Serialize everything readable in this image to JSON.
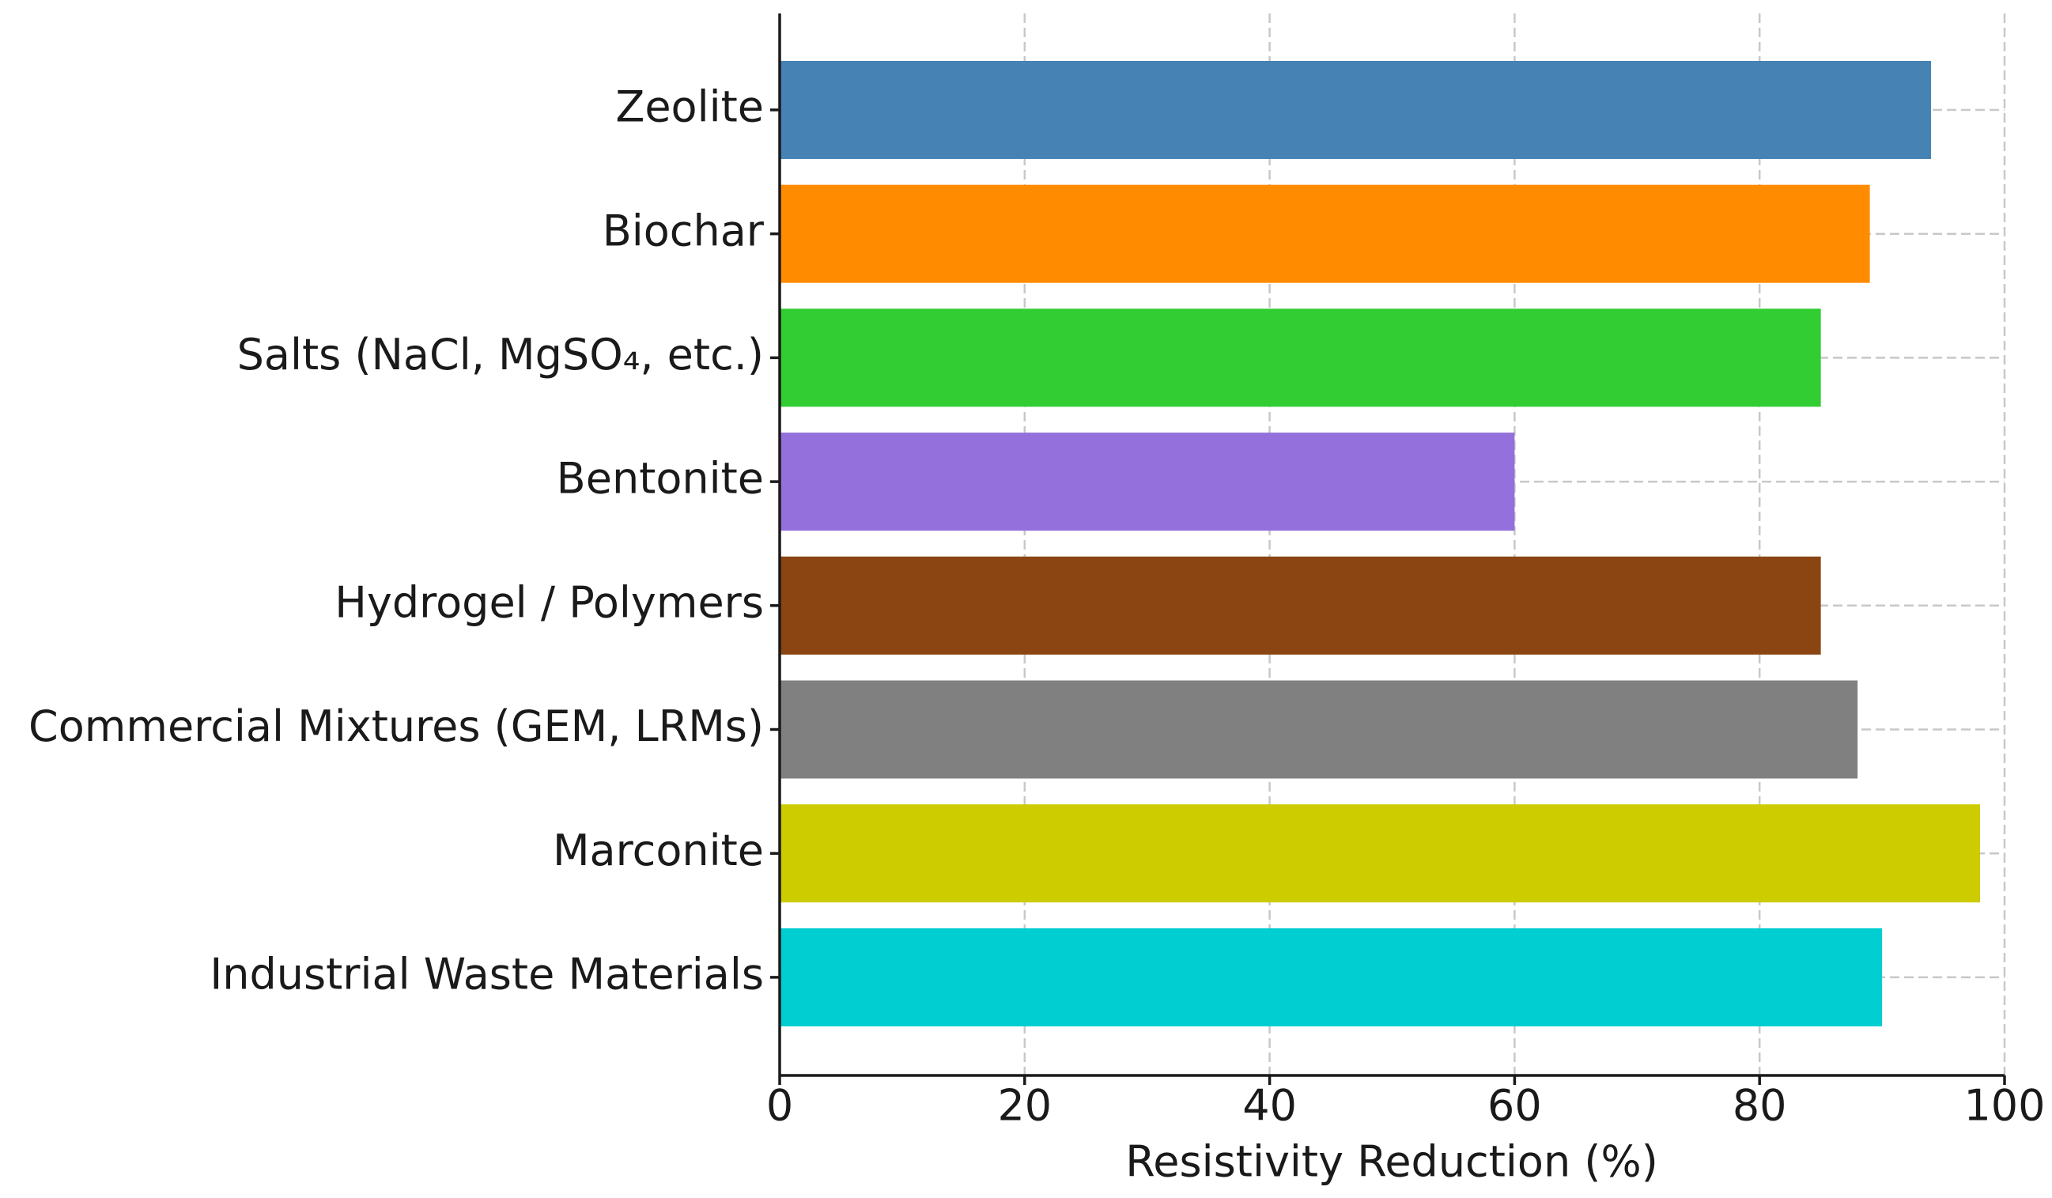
{
  "chart_data": {
    "type": "barh",
    "x_label": "Resistivity Reduction (%)",
    "categories": [
      "Zeolite",
      "Biochar",
      "Salts (NaCl, MgSO₄, etc.)",
      "Bentonite",
      "Hydrogel / Polymers",
      "Commercial Mixtures (GEM, LRMs)",
      "Marconite",
      "Industrial Waste Materials"
    ],
    "values": [
      94,
      89,
      85,
      60,
      85,
      88,
      98,
      90
    ],
    "colors": [
      "#4682b4",
      "#ff8c00",
      "#32cd32",
      "#9370db",
      "#8b4513",
      "#808080",
      "#cccc00",
      "#00ced1"
    ],
    "xlim": [
      0,
      100
    ],
    "xticks": [
      0,
      20,
      40,
      60,
      80,
      100
    ],
    "grid": true
  }
}
